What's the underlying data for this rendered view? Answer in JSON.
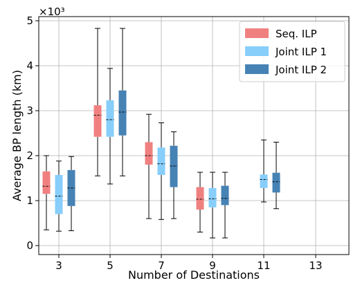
{
  "chart_data": {
    "type": "box",
    "xlabel": "Number of Destinations",
    "ylabel": "Average BP length (km)",
    "scale_label": "×10³",
    "categories": [
      "3",
      "5",
      "7",
      "9",
      "11",
      "13"
    ],
    "ylim": [
      0,
      5
    ],
    "yticks": [
      "0",
      "1",
      "2",
      "3",
      "4",
      "5"
    ],
    "grid": true,
    "legend_position": "top-right",
    "series": [
      {
        "name": "Seq. ILP",
        "color": "#f08080",
        "boxes": [
          {
            "category": "3",
            "whisker_low": 0.35,
            "q1": 1.15,
            "median": 1.32,
            "q3": 1.65,
            "whisker_high": 2.0
          },
          {
            "category": "5",
            "whisker_low": 1.55,
            "q1": 2.42,
            "median": 2.9,
            "q3": 3.12,
            "whisker_high": 4.83
          },
          {
            "category": "7",
            "whisker_low": 0.6,
            "q1": 1.8,
            "median": 2.0,
            "q3": 2.3,
            "whisker_high": 2.92
          },
          {
            "category": "9",
            "whisker_low": 0.3,
            "q1": 0.8,
            "median": 1.03,
            "q3": 1.3,
            "whisker_high": 1.63
          }
        ]
      },
      {
        "name": "Joint ILP 1",
        "color": "#87cefa",
        "boxes": [
          {
            "category": "3",
            "whisker_low": 0.32,
            "q1": 0.7,
            "median": 1.1,
            "q3": 1.57,
            "whisker_high": 1.88
          },
          {
            "category": "5",
            "whisker_low": 1.37,
            "q1": 2.42,
            "median": 2.8,
            "q3": 3.23,
            "whisker_high": 3.94
          },
          {
            "category": "7",
            "whisker_low": 0.58,
            "q1": 1.57,
            "median": 1.82,
            "q3": 2.18,
            "whisker_high": 2.73
          },
          {
            "category": "9",
            "whisker_low": 0.17,
            "q1": 0.85,
            "median": 1.04,
            "q3": 1.28,
            "whisker_high": 1.63
          },
          {
            "category": "11",
            "whisker_low": 0.97,
            "q1": 1.28,
            "median": 1.47,
            "q3": 1.58,
            "whisker_high": 2.35
          }
        ]
      },
      {
        "name": "Joint ILP 2",
        "color": "#4682b4",
        "boxes": [
          {
            "category": "3",
            "whisker_low": 0.33,
            "q1": 0.88,
            "median": 1.28,
            "q3": 1.68,
            "whisker_high": 1.98
          },
          {
            "category": "5",
            "whisker_low": 1.55,
            "q1": 2.45,
            "median": 2.97,
            "q3": 3.45,
            "whisker_high": 4.83
          },
          {
            "category": "7",
            "whisker_low": 0.6,
            "q1": 1.3,
            "median": 1.77,
            "q3": 2.22,
            "whisker_high": 2.53
          },
          {
            "category": "9",
            "whisker_low": 0.17,
            "q1": 0.9,
            "median": 1.05,
            "q3": 1.33,
            "whisker_high": 1.63
          },
          {
            "category": "11",
            "whisker_low": 0.82,
            "q1": 1.18,
            "median": 1.42,
            "q3": 1.62,
            "whisker_high": 2.3
          }
        ]
      }
    ]
  }
}
